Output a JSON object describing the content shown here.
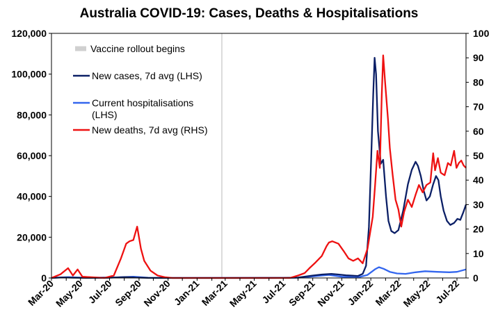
{
  "chart_data": {
    "type": "line",
    "title": "Australia COVID-19: Cases, Deaths & Hospitalisations",
    "x_tick_labels": [
      "Mar-20",
      "May-20",
      "Jul-20",
      "Sep-20",
      "Nov-20",
      "Jan-21",
      "Mar-21",
      "May-21",
      "Jul-21",
      "Sep-21",
      "Nov-21",
      "Jan-22",
      "Mar-22",
      "May-22",
      "Jul-22"
    ],
    "x_range": [
      "2020-03-01",
      "2022-07-20"
    ],
    "y_left": {
      "ylim": [
        0,
        120000
      ],
      "ticks": [
        "0",
        "20,000",
        "40,000",
        "60,000",
        "80,000",
        "100,000",
        "120,000"
      ],
      "tick_values": [
        0,
        20000,
        40000,
        60000,
        80000,
        100000,
        120000
      ]
    },
    "y_right": {
      "ylim": [
        0,
        100
      ],
      "ticks": [
        "0",
        "10",
        "20",
        "30",
        "40",
        "50",
        "60",
        "70",
        "80",
        "90",
        "100"
      ],
      "tick_values": [
        0,
        10,
        20,
        30,
        40,
        50,
        60,
        70,
        80,
        90,
        100
      ]
    },
    "annotations": [
      {
        "type": "vertical-line",
        "x": "2021-02-22",
        "label": "Vaccine rollout begins",
        "color": "#d0d0d0"
      }
    ],
    "legend_placement": "top-left",
    "grid": false,
    "series": [
      {
        "name": "New cases, 7d avg (LHS)",
        "axis": "left",
        "color": "#0b1f66",
        "points": [
          [
            "2020-03-01",
            50
          ],
          [
            "2020-03-25",
            300
          ],
          [
            "2020-04-15",
            150
          ],
          [
            "2020-05-15",
            20
          ],
          [
            "2020-06-30",
            100
          ],
          [
            "2020-07-20",
            350
          ],
          [
            "2020-08-05",
            450
          ],
          [
            "2020-08-25",
            200
          ],
          [
            "2020-09-20",
            50
          ],
          [
            "2020-11-01",
            10
          ],
          [
            "2021-03-01",
            5
          ],
          [
            "2021-07-01",
            20
          ],
          [
            "2021-08-01",
            200
          ],
          [
            "2021-09-01",
            1200
          ],
          [
            "2021-09-20",
            1700
          ],
          [
            "2021-10-10",
            2000
          ],
          [
            "2021-10-25",
            1700
          ],
          [
            "2021-11-10",
            1300
          ],
          [
            "2021-12-05",
            1000
          ],
          [
            "2021-12-15",
            2000
          ],
          [
            "2021-12-22",
            6000
          ],
          [
            "2021-12-28",
            25000
          ],
          [
            "2022-01-02",
            60000
          ],
          [
            "2022-01-06",
            90000
          ],
          [
            "2022-01-09",
            108000
          ],
          [
            "2022-01-12",
            100000
          ],
          [
            "2022-01-16",
            72000
          ],
          [
            "2022-01-22",
            56000
          ],
          [
            "2022-01-27",
            58000
          ],
          [
            "2022-02-02",
            40000
          ],
          [
            "2022-02-07",
            28000
          ],
          [
            "2022-02-13",
            23000
          ],
          [
            "2022-02-20",
            22000
          ],
          [
            "2022-02-28",
            23500
          ],
          [
            "2022-03-10",
            33000
          ],
          [
            "2022-03-20",
            46000
          ],
          [
            "2022-03-28",
            53000
          ],
          [
            "2022-04-05",
            57000
          ],
          [
            "2022-04-10",
            55000
          ],
          [
            "2022-04-16",
            50000
          ],
          [
            "2022-04-22",
            43000
          ],
          [
            "2022-04-28",
            38000
          ],
          [
            "2022-05-05",
            40000
          ],
          [
            "2022-05-12",
            46000
          ],
          [
            "2022-05-18",
            50000
          ],
          [
            "2022-05-23",
            48000
          ],
          [
            "2022-05-28",
            40000
          ],
          [
            "2022-06-03",
            33000
          ],
          [
            "2022-06-10",
            28000
          ],
          [
            "2022-06-17",
            26000
          ],
          [
            "2022-06-25",
            27000
          ],
          [
            "2022-07-02",
            29000
          ],
          [
            "2022-07-08",
            28500
          ],
          [
            "2022-07-14",
            32000
          ],
          [
            "2022-07-20",
            36000
          ]
        ]
      },
      {
        "name": "Current hospitalisations (LHS)",
        "axis": "left",
        "color": "#3366ee",
        "points": [
          [
            "2020-03-01",
            0
          ],
          [
            "2020-04-05",
            400
          ],
          [
            "2020-05-10",
            100
          ],
          [
            "2020-07-20",
            300
          ],
          [
            "2020-08-20",
            650
          ],
          [
            "2020-09-20",
            150
          ],
          [
            "2020-10-20",
            30
          ],
          [
            "2021-08-01",
            100
          ],
          [
            "2021-09-01",
            800
          ],
          [
            "2021-10-05",
            1500
          ],
          [
            "2021-11-01",
            600
          ],
          [
            "2021-12-05",
            300
          ],
          [
            "2021-12-25",
            1500
          ],
          [
            "2022-01-10",
            4300
          ],
          [
            "2022-01-18",
            5300
          ],
          [
            "2022-01-28",
            4500
          ],
          [
            "2022-02-10",
            3000
          ],
          [
            "2022-02-25",
            2200
          ],
          [
            "2022-03-15",
            2000
          ],
          [
            "2022-04-05",
            2800
          ],
          [
            "2022-04-25",
            3300
          ],
          [
            "2022-05-20",
            3000
          ],
          [
            "2022-06-15",
            2800
          ],
          [
            "2022-07-01",
            3000
          ],
          [
            "2022-07-20",
            4200
          ]
        ]
      },
      {
        "name": "New deaths, 7d avg (RHS)",
        "axis": "right",
        "color": "#ee1111",
        "points": [
          [
            "2020-03-01",
            0
          ],
          [
            "2020-03-20",
            1.5
          ],
          [
            "2020-04-05",
            4
          ],
          [
            "2020-04-15",
            1
          ],
          [
            "2020-04-25",
            3.5
          ],
          [
            "2020-05-05",
            0.5
          ],
          [
            "2020-06-20",
            0
          ],
          [
            "2020-07-10",
            1
          ],
          [
            "2020-07-25",
            8
          ],
          [
            "2020-08-05",
            14
          ],
          [
            "2020-08-12",
            15
          ],
          [
            "2020-08-20",
            15.5
          ],
          [
            "2020-08-28",
            21
          ],
          [
            "2020-09-05",
            12
          ],
          [
            "2020-09-12",
            7
          ],
          [
            "2020-09-25",
            3
          ],
          [
            "2020-10-10",
            1
          ],
          [
            "2020-10-25",
            0.3
          ],
          [
            "2020-11-10",
            0
          ],
          [
            "2021-07-15",
            0
          ],
          [
            "2021-08-01",
            1
          ],
          [
            "2021-08-15",
            2
          ],
          [
            "2021-08-25",
            4
          ],
          [
            "2021-09-05",
            6
          ],
          [
            "2021-09-20",
            9
          ],
          [
            "2021-09-30",
            13
          ],
          [
            "2021-10-05",
            14.5
          ],
          [
            "2021-10-12",
            15
          ],
          [
            "2021-10-25",
            14
          ],
          [
            "2021-11-05",
            11
          ],
          [
            "2021-11-15",
            8
          ],
          [
            "2021-11-25",
            7
          ],
          [
            "2021-12-05",
            8
          ],
          [
            "2021-12-15",
            6
          ],
          [
            "2021-12-25",
            12
          ],
          [
            "2022-01-05",
            25
          ],
          [
            "2022-01-10",
            38
          ],
          [
            "2022-01-15",
            52
          ],
          [
            "2022-01-20",
            45
          ],
          [
            "2022-01-24",
            75
          ],
          [
            "2022-01-27",
            91
          ],
          [
            "2022-01-31",
            80
          ],
          [
            "2022-02-06",
            65
          ],
          [
            "2022-02-10",
            53
          ],
          [
            "2022-02-16",
            42
          ],
          [
            "2022-02-22",
            32
          ],
          [
            "2022-02-28",
            28
          ],
          [
            "2022-03-06",
            21
          ],
          [
            "2022-03-12",
            27
          ],
          [
            "2022-03-20",
            32
          ],
          [
            "2022-03-28",
            29
          ],
          [
            "2022-04-05",
            34
          ],
          [
            "2022-04-12",
            38
          ],
          [
            "2022-04-20",
            35
          ],
          [
            "2022-04-28",
            38
          ],
          [
            "2022-05-06",
            39
          ],
          [
            "2022-05-12",
            51
          ],
          [
            "2022-05-16",
            44
          ],
          [
            "2022-05-22",
            49
          ],
          [
            "2022-05-28",
            43
          ],
          [
            "2022-06-05",
            42
          ],
          [
            "2022-06-12",
            47
          ],
          [
            "2022-06-18",
            46
          ],
          [
            "2022-06-25",
            52
          ],
          [
            "2022-06-30",
            45
          ],
          [
            "2022-07-05",
            47
          ],
          [
            "2022-07-10",
            48
          ],
          [
            "2022-07-15",
            46
          ],
          [
            "2022-07-20",
            45
          ]
        ]
      }
    ]
  }
}
